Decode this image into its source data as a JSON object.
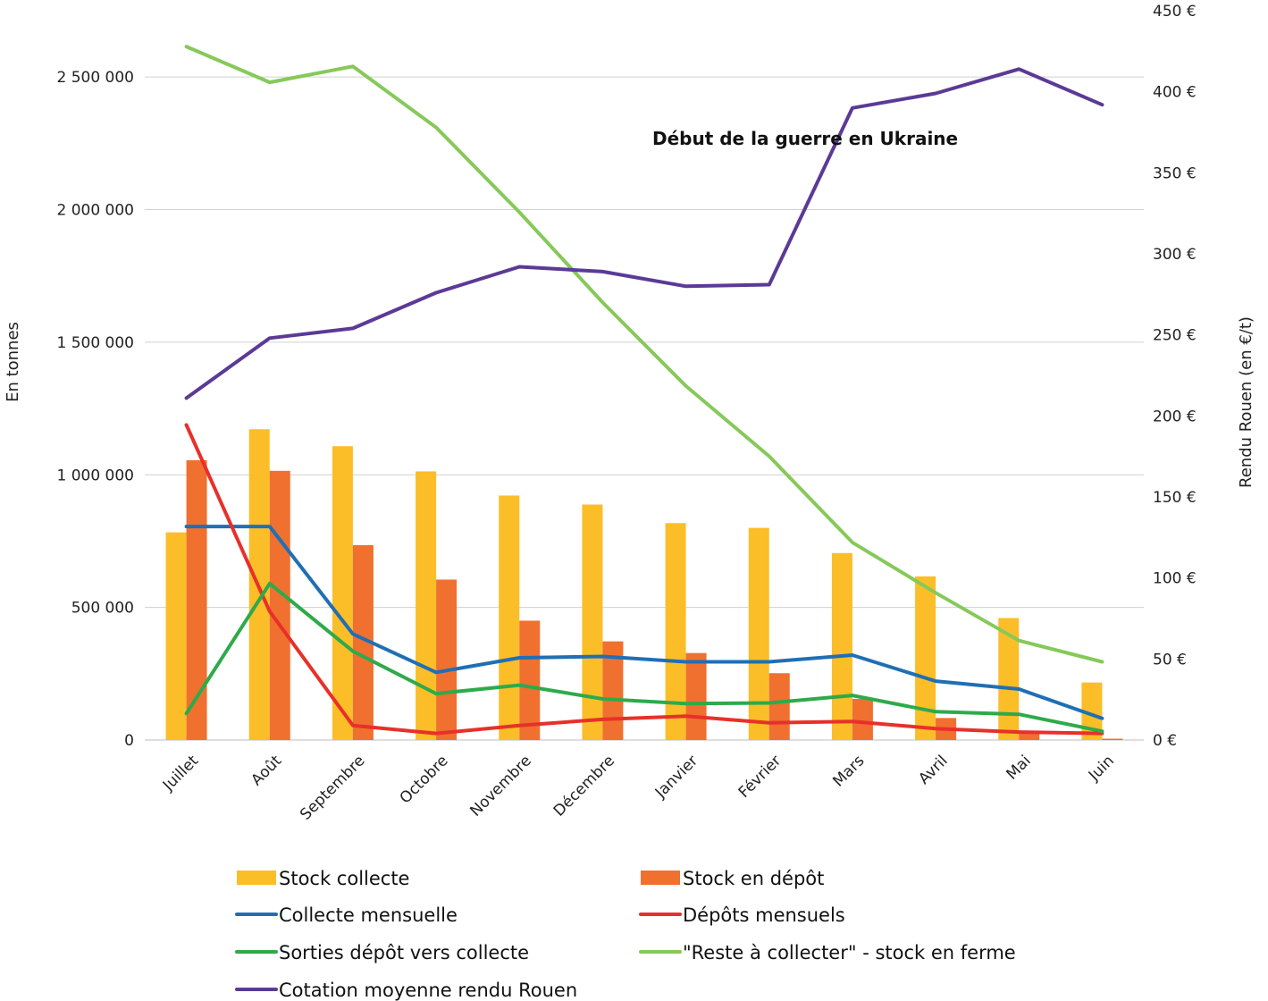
{
  "chart_data": {
    "type": "bar",
    "categories": [
      "Juillet",
      "Août",
      "Septembre",
      "Octobre",
      "Novembre",
      "Décembre",
      "Janvier",
      "Février",
      "Mars",
      "Avril",
      "Mai",
      "Juin"
    ],
    "ylabel": "En tonnes",
    "y2label": "Rendu Rouen (en €/t)",
    "ylim": [
      0,
      2750000
    ],
    "y2lim": [
      0,
      450
    ],
    "y_ticks": [
      {
        "value": 0,
        "label": "0"
      },
      {
        "value": 500000,
        "label": "500 000"
      },
      {
        "value": 1000000,
        "label": "1 000 000"
      },
      {
        "value": 1500000,
        "label": "1 500 000"
      },
      {
        "value": 2000000,
        "label": "2 000 000"
      },
      {
        "value": 2500000,
        "label": "2 500 000"
      }
    ],
    "y2_ticks": [
      {
        "value": 0,
        "label": "0 €"
      },
      {
        "value": 50,
        "label": "50 €"
      },
      {
        "value": 100,
        "label": "100 €"
      },
      {
        "value": 150,
        "label": "150 €"
      },
      {
        "value": 200,
        "label": "200 €"
      },
      {
        "value": 250,
        "label": "250 €"
      },
      {
        "value": 300,
        "label": "300 €"
      },
      {
        "value": 350,
        "label": "350 €"
      },
      {
        "value": 400,
        "label": "400 €"
      },
      {
        "value": 450,
        "label": "450 €"
      }
    ],
    "annotation": {
      "text": "Début de la guerre en Ukraine"
    },
    "grid": true,
    "legend_position": "bottom",
    "series": [
      {
        "name": "Stock collecte",
        "kind": "bar",
        "axis": "left",
        "color": "#FBBE28",
        "values": [
          783000,
          1172000,
          1108000,
          1013000,
          922000,
          888000,
          818000,
          800000,
          705000,
          617000,
          460000,
          217000
        ]
      },
      {
        "name": "Stock en dépôt",
        "kind": "bar",
        "axis": "left",
        "color": "#F07030",
        "values": [
          1055000,
          1015000,
          735000,
          605000,
          450000,
          372000,
          328000,
          252000,
          155000,
          83000,
          33000,
          5000
        ]
      },
      {
        "name": "Collecte mensuelle",
        "kind": "line",
        "axis": "left",
        "color": "#1F6FB5",
        "values": [
          805000,
          805000,
          400000,
          255000,
          310000,
          315000,
          295000,
          295000,
          320000,
          222000,
          192000,
          82000
        ]
      },
      {
        "name": "Dépôts mensuels",
        "kind": "line",
        "axis": "left",
        "color": "#E8302A",
        "values": [
          1188000,
          485000,
          55000,
          25000,
          55000,
          78000,
          90000,
          65000,
          70000,
          43000,
          30000,
          25000
        ]
      },
      {
        "name": "Sorties dépôt vers collecte",
        "kind": "line",
        "axis": "left",
        "color": "#2EAA4A",
        "values": [
          100000,
          590000,
          335000,
          175000,
          207000,
          155000,
          137000,
          140000,
          168000,
          107000,
          97000,
          33000
        ]
      },
      {
        "name": "\"Reste à collecter\" - stock en ferme",
        "kind": "line",
        "axis": "left",
        "color": "#86C95A",
        "values": [
          2615000,
          2480000,
          2540000,
          2310000,
          1990000,
          1650000,
          1335000,
          1070000,
          745000,
          555000,
          375000,
          295000
        ]
      },
      {
        "name": "Cotation moyenne rendu Rouen",
        "kind": "line",
        "axis": "right",
        "color": "#5B3A96",
        "values": [
          211,
          248,
          254,
          276,
          292,
          289,
          280,
          281,
          390,
          399,
          414,
          392
        ]
      }
    ]
  }
}
